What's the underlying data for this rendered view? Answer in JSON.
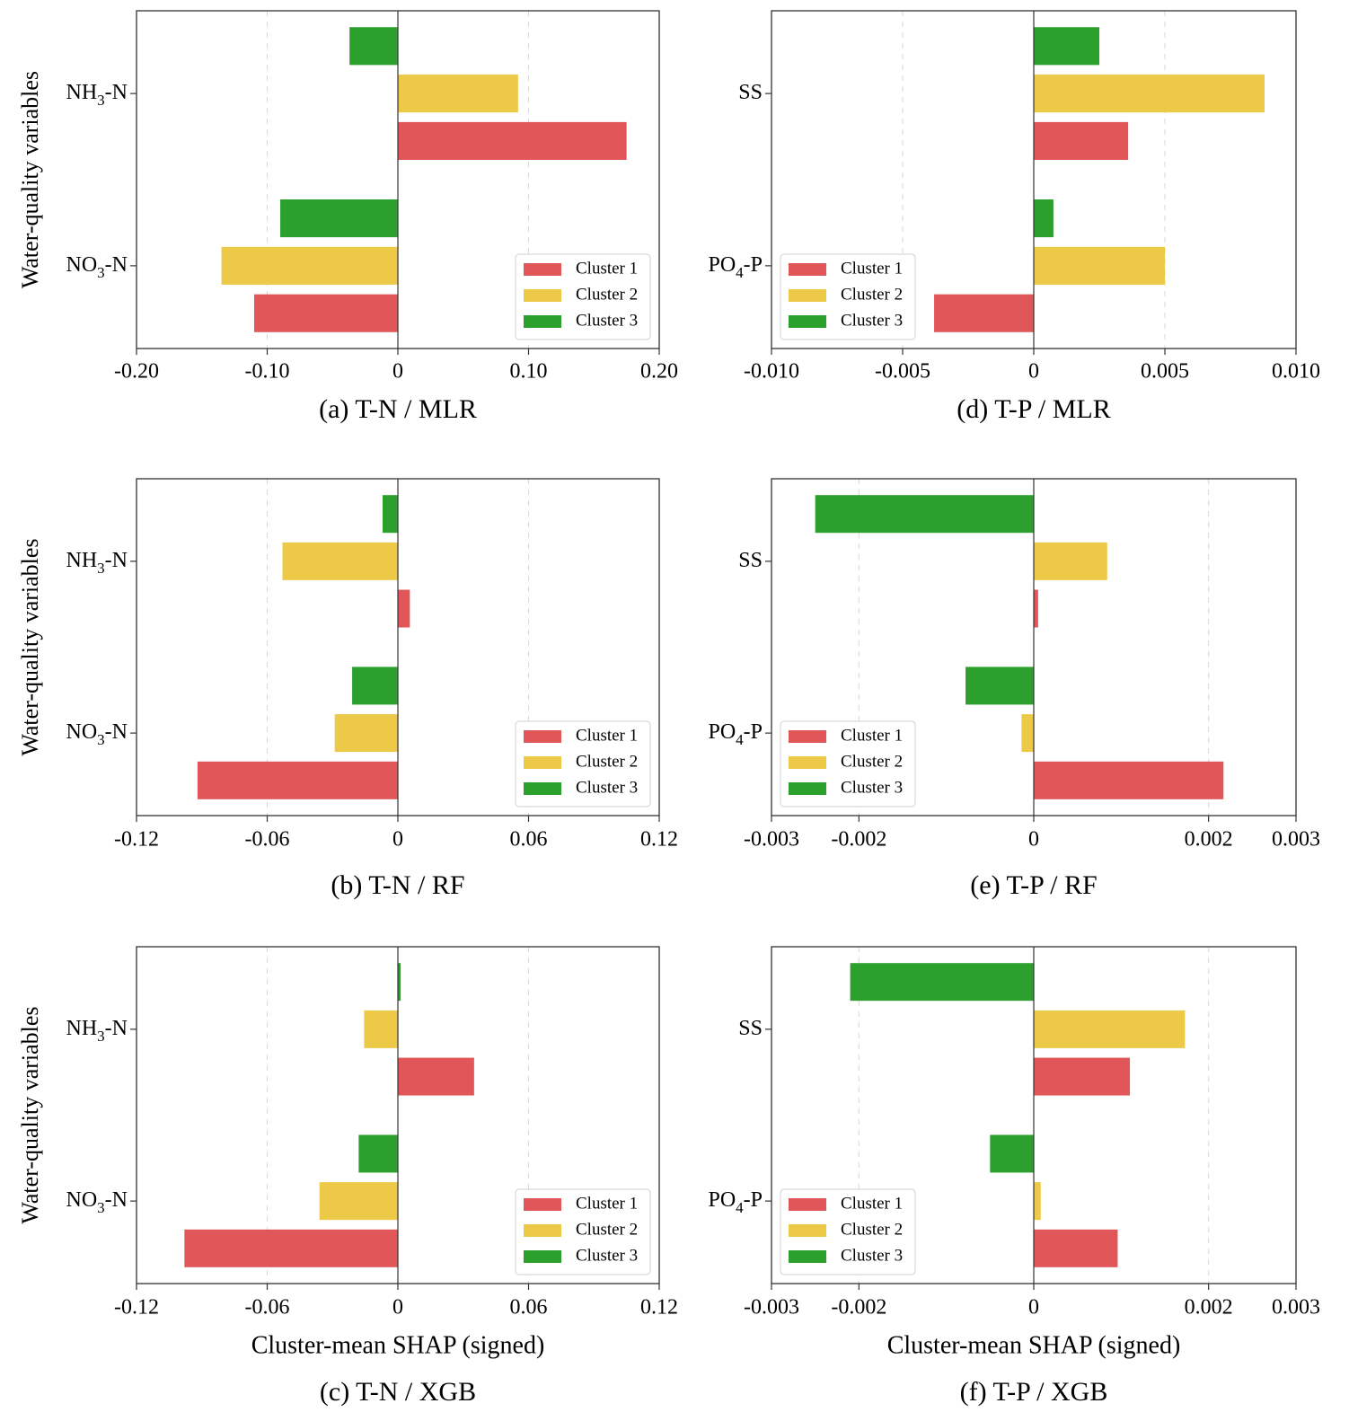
{
  "chart_data": [
    {
      "type": "bar",
      "orientation": "horizontal",
      "caption": "(a) T-N / MLR",
      "ylabel": "Water-quality variables",
      "xlabel": "",
      "categories": [
        "NH3-N",
        "NO3-N"
      ],
      "category_labels": [
        {
          "main": "NH",
          "sub": "3",
          "rest": "-N"
        },
        {
          "main": "NO",
          "sub": "3",
          "rest": "-N"
        }
      ],
      "xlim": [
        -0.2,
        0.2
      ],
      "xticks": [
        -0.2,
        -0.1,
        0,
        0.1,
        0.2
      ],
      "xtick_labels": [
        "-0.20",
        "-0.10",
        "0",
        "0.10",
        "0.20"
      ],
      "series": [
        {
          "name": "Cluster 1",
          "color": "#e15759",
          "values": [
            0.175,
            -0.11
          ]
        },
        {
          "name": "Cluster 2",
          "color": "#edc948",
          "values": [
            0.092,
            -0.135
          ]
        },
        {
          "name": "Cluster 3",
          "color": "#2ca02c",
          "values": [
            -0.037,
            -0.09
          ]
        }
      ],
      "legend_position": "lower-right",
      "grid": "vertical-dashed"
    },
    {
      "type": "bar",
      "orientation": "horizontal",
      "caption": "(b) T-N / RF",
      "ylabel": "Water-quality variables",
      "xlabel": "",
      "categories": [
        "NH3-N",
        "NO3-N"
      ],
      "category_labels": [
        {
          "main": "NH",
          "sub": "3",
          "rest": "-N"
        },
        {
          "main": "NO",
          "sub": "3",
          "rest": "-N"
        }
      ],
      "xlim": [
        -0.12,
        0.12
      ],
      "xticks": [
        -0.12,
        -0.06,
        0,
        0.06,
        0.12
      ],
      "xtick_labels": [
        "-0.12",
        "-0.06",
        "0",
        "0.06",
        "0.12"
      ],
      "series": [
        {
          "name": "Cluster 1",
          "color": "#e15759",
          "values": [
            0.0055,
            -0.092
          ]
        },
        {
          "name": "Cluster 2",
          "color": "#edc948",
          "values": [
            -0.053,
            -0.029
          ]
        },
        {
          "name": "Cluster 3",
          "color": "#2ca02c",
          "values": [
            -0.007,
            -0.021
          ]
        }
      ],
      "legend_position": "lower-right",
      "grid": "vertical-dashed"
    },
    {
      "type": "bar",
      "orientation": "horizontal",
      "caption": "(c) T-N / XGB",
      "ylabel": "Water-quality variables",
      "xlabel": "Cluster-mean SHAP (signed)",
      "categories": [
        "NH3-N",
        "NO3-N"
      ],
      "category_labels": [
        {
          "main": "NH",
          "sub": "3",
          "rest": "-N"
        },
        {
          "main": "NO",
          "sub": "3",
          "rest": "-N"
        }
      ],
      "xlim": [
        -0.12,
        0.12
      ],
      "xticks": [
        -0.12,
        -0.06,
        0,
        0.06,
        0.12
      ],
      "xtick_labels": [
        "-0.12",
        "-0.06",
        "0",
        "0.06",
        "0.12"
      ],
      "series": [
        {
          "name": "Cluster 1",
          "color": "#e15759",
          "values": [
            0.035,
            -0.098
          ]
        },
        {
          "name": "Cluster 2",
          "color": "#edc948",
          "values": [
            -0.0155,
            -0.036
          ]
        },
        {
          "name": "Cluster 3",
          "color": "#2ca02c",
          "values": [
            0.0013,
            -0.018
          ]
        }
      ],
      "legend_position": "lower-right",
      "grid": "vertical-dashed"
    },
    {
      "type": "bar",
      "orientation": "horizontal",
      "caption": "(d) T-P / MLR",
      "ylabel": "",
      "xlabel": "",
      "categories": [
        "SS",
        "PO4-P"
      ],
      "category_labels": [
        {
          "main": "SS",
          "sub": "",
          "rest": ""
        },
        {
          "main": "PO",
          "sub": "4",
          "rest": "-P"
        }
      ],
      "xlim": [
        -0.01,
        0.01
      ],
      "xticks": [
        -0.01,
        -0.005,
        0,
        0.005,
        0.01
      ],
      "xtick_labels": [
        "-0.010",
        "-0.005",
        "0",
        "0.005",
        "0.010"
      ],
      "series": [
        {
          "name": "Cluster 1",
          "color": "#e15759",
          "values": [
            0.0036,
            -0.0038
          ]
        },
        {
          "name": "Cluster 2",
          "color": "#edc948",
          "values": [
            0.0088,
            0.005
          ]
        },
        {
          "name": "Cluster 3",
          "color": "#2ca02c",
          "values": [
            0.0025,
            0.00075
          ]
        }
      ],
      "legend_position": "lower-left",
      "grid": "vertical-dashed"
    },
    {
      "type": "bar",
      "orientation": "horizontal",
      "caption": "(e) T-P / RF",
      "ylabel": "",
      "xlabel": "",
      "categories": [
        "SS",
        "PO4-P"
      ],
      "category_labels": [
        {
          "main": "SS",
          "sub": "",
          "rest": ""
        },
        {
          "main": "PO",
          "sub": "4",
          "rest": "-P"
        }
      ],
      "xlim": [
        -0.003,
        0.003
      ],
      "xticks": [
        -0.003,
        -0.002,
        0,
        0.002,
        0.003
      ],
      "xtick_labels": [
        "-0.003",
        "-0.002",
        "0",
        "0.002",
        "0.003"
      ],
      "series": [
        {
          "name": "Cluster 1",
          "color": "#e15759",
          "values": [
            5e-05,
            0.00217
          ]
        },
        {
          "name": "Cluster 2",
          "color": "#edc948",
          "values": [
            0.00084,
            -0.00014
          ]
        },
        {
          "name": "Cluster 3",
          "color": "#2ca02c",
          "values": [
            -0.0025,
            -0.00078
          ]
        }
      ],
      "legend_position": "lower-left",
      "grid": "vertical-dashed"
    },
    {
      "type": "bar",
      "orientation": "horizontal",
      "caption": "(f) T-P / XGB",
      "ylabel": "",
      "xlabel": "Cluster-mean SHAP (signed)",
      "categories": [
        "SS",
        "PO4-P"
      ],
      "category_labels": [
        {
          "main": "SS",
          "sub": "",
          "rest": ""
        },
        {
          "main": "PO",
          "sub": "4",
          "rest": "-P"
        }
      ],
      "xlim": [
        -0.003,
        0.003
      ],
      "xticks": [
        -0.003,
        -0.002,
        0,
        0.002,
        0.003
      ],
      "xtick_labels": [
        "-0.003",
        "-0.002",
        "0",
        "0.002",
        "0.003"
      ],
      "series": [
        {
          "name": "Cluster 1",
          "color": "#e15759",
          "values": [
            0.0011,
            0.00096
          ]
        },
        {
          "name": "Cluster 2",
          "color": "#edc948",
          "values": [
            0.00173,
            8e-05
          ]
        },
        {
          "name": "Cluster 3",
          "color": "#2ca02c",
          "values": [
            -0.0021,
            -0.0005
          ]
        }
      ],
      "legend_position": "lower-left",
      "grid": "vertical-dashed"
    }
  ]
}
